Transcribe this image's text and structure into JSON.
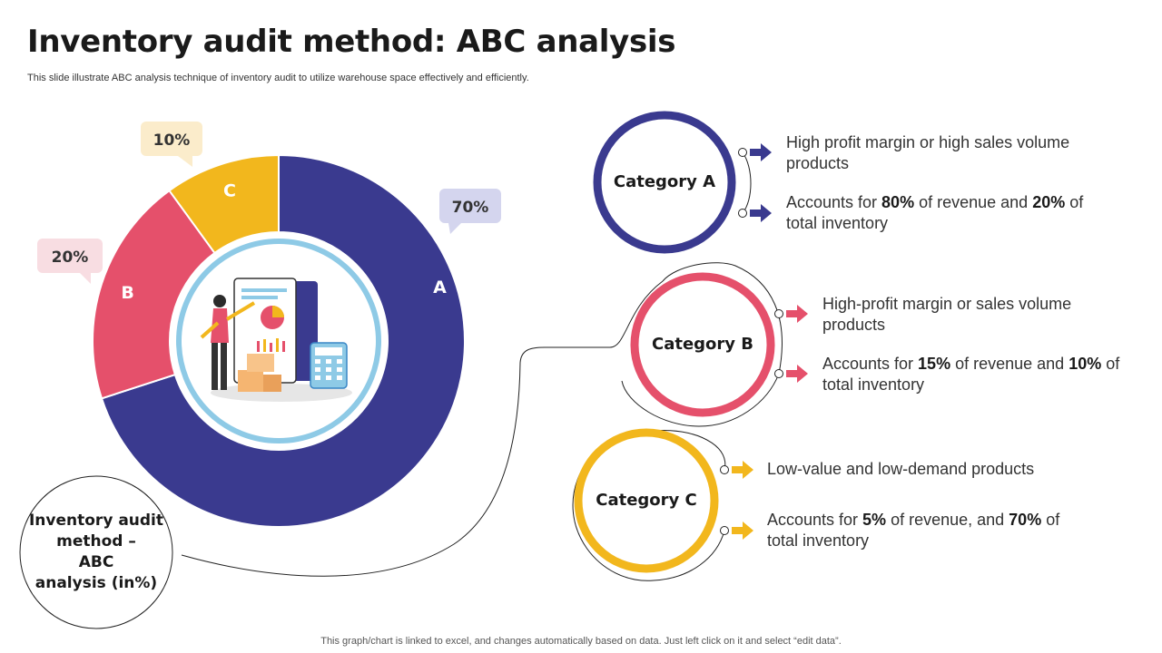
{
  "header": {
    "title": "Inventory audit method: ABC analysis",
    "subtitle": "This slide illustrate ABC analysis technique of inventory audit to utilize warehouse space effectively and efficiently."
  },
  "chart_data": {
    "type": "pie",
    "title": "Inventory audit method – ABC analysis (in%)",
    "categories": [
      "A",
      "B",
      "C"
    ],
    "values": [
      70,
      20,
      10
    ],
    "value_labels": [
      "70%",
      "20%",
      "10%"
    ],
    "colors": [
      "#3a3a8f",
      "#e5506b",
      "#f2b71d"
    ],
    "bubble_colors": [
      "#d4d5ee",
      "#f8dde2",
      "#fbeccb"
    ],
    "legend": "none"
  },
  "center_label": {
    "line1": "Inventory audit",
    "line2": "method –",
    "line3": "ABC",
    "line4": "analysis (in%)"
  },
  "categories": [
    {
      "name": "Category  A",
      "color": "#3a3a8f",
      "items": [
        {
          "pre": "High profit margin or high sales volume",
          "pre2": "products"
        },
        {
          "pre": "Accounts for ",
          "b1": "80%",
          "mid": " of revenue and ",
          "b2": "20%",
          "post": " of",
          "line2": "total inventory"
        }
      ]
    },
    {
      "name": "Category  B",
      "color": "#e5506b",
      "items": [
        {
          "pre": "High-profit margin or sales volume",
          "pre2": "products"
        },
        {
          "pre": "Accounts for ",
          "b1": "15%",
          "mid": " of revenue and ",
          "b2": "10%",
          "post": " of",
          "line2": "total inventory"
        }
      ]
    },
    {
      "name": "Category  C",
      "color": "#f2b71d",
      "items": [
        {
          "pre": "Low-value and low-demand products"
        },
        {
          "pre": "Accounts for ",
          "b1": "5%",
          "mid": " of revenue, and ",
          "b2": "70%",
          "post": " of",
          "line2": "total inventory"
        }
      ]
    }
  ],
  "footer": "This graph/chart is linked to excel,  and changes automatically based on data. Just left click on it and select “edit data”."
}
